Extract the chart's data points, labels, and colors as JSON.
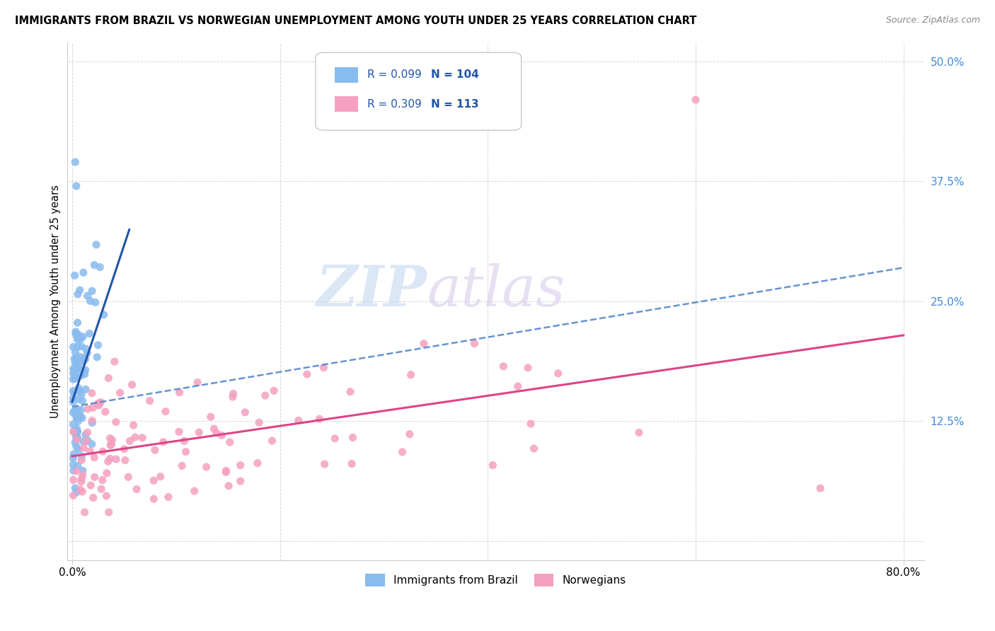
{
  "title": "IMMIGRANTS FROM BRAZIL VS NORWEGIAN UNEMPLOYMENT AMONG YOUTH UNDER 25 YEARS CORRELATION CHART",
  "source": "Source: ZipAtlas.com",
  "ylabel": "Unemployment Among Youth under 25 years",
  "right_yticks": [
    0.0,
    0.125,
    0.25,
    0.375,
    0.5
  ],
  "right_yticklabels": [
    "",
    "12.5%",
    "25.0%",
    "37.5%",
    "50.0%"
  ],
  "ylim": [
    -0.02,
    0.52
  ],
  "xlim": [
    -0.005,
    0.82
  ],
  "series1": {
    "label": "Immigrants from Brazil",
    "R": 0.099,
    "N": 104,
    "color": "#88bbee",
    "line_color": "#2255aa",
    "line_style": "-",
    "dash_color": "#5588cc",
    "dash_style": "--"
  },
  "series2": {
    "label": "Norwegians",
    "R": 0.309,
    "N": 113,
    "color": "#f5a0c0",
    "line_color": "#dd4488",
    "line_style": "-"
  },
  "watermark": "ZIPAtlas",
  "watermark_color_zip": "#c8d8f0",
  "watermark_color_atlas": "#d8c8e8",
  "background_color": "#ffffff",
  "grid_color": "#bbbbbb",
  "tick_color": "#4488dd",
  "legend_color": "#2255aa"
}
